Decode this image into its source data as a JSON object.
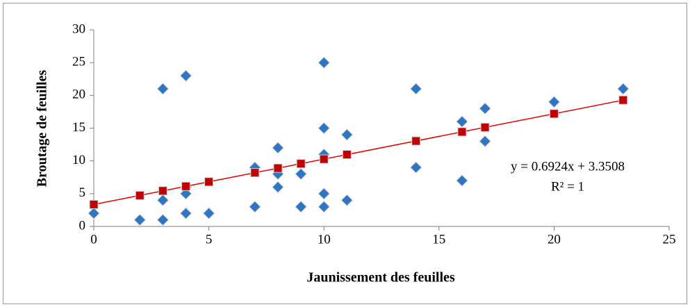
{
  "chart_data": {
    "type": "scatter",
    "x_label": "Jaunissement des feuilles",
    "y_label": "Broutage de feuilles",
    "xlim": [
      0,
      25
    ],
    "xticks": [
      0,
      5,
      10,
      15,
      20,
      25
    ],
    "ylim": [
      0,
      30
    ],
    "yticks": [
      0,
      5,
      10,
      15,
      20,
      25,
      30
    ],
    "grid": false,
    "series": [
      {
        "color": "#2e75c4",
        "marker": "diamond",
        "x": [
          0,
          2,
          3,
          3,
          3,
          4,
          4,
          4,
          4,
          5,
          7,
          7,
          8,
          8,
          8,
          9,
          9,
          10,
          10,
          10,
          10,
          10,
          11,
          11,
          14,
          14,
          16,
          16,
          17,
          17,
          20,
          23
        ],
        "values": [
          2,
          1,
          21,
          4,
          1,
          23,
          6,
          5,
          2,
          2,
          9,
          3,
          12,
          8,
          6,
          8,
          3,
          25,
          15,
          11,
          5,
          3,
          14,
          4,
          21,
          9,
          16,
          7,
          18,
          13,
          19,
          21
        ]
      },
      {
        "color": "#c00000",
        "marker": "square",
        "x": [
          0,
          2,
          3,
          4,
          5,
          7,
          8,
          9,
          10,
          11,
          14,
          16,
          17,
          20,
          23
        ],
        "values": [
          3.35,
          4.73,
          5.43,
          6.12,
          6.81,
          8.2,
          8.89,
          9.58,
          10.27,
          10.97,
          13.04,
          14.43,
          15.12,
          17.2,
          19.28
        ]
      }
    ],
    "trendline": {
      "color": "#e00000",
      "x": [
        0,
        23
      ],
      "values": [
        3.35,
        19.28
      ]
    },
    "annotations": [
      "y = 0.6924x + 3.3508",
      "R² = 1"
    ]
  }
}
